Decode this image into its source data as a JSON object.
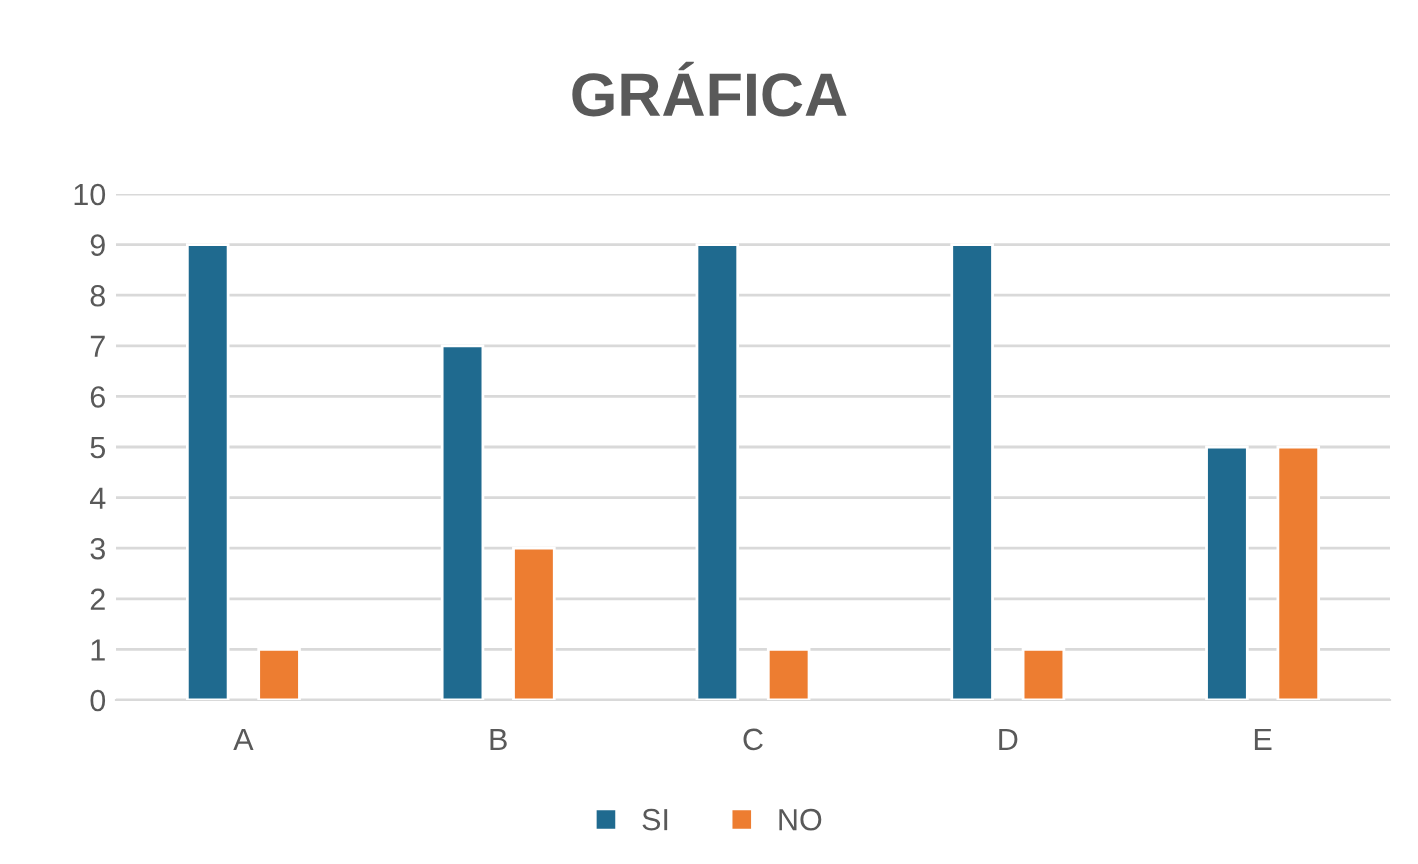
{
  "chart_data": {
    "type": "bar",
    "title": "GRÁFICA",
    "categories": [
      "A",
      "B",
      "C",
      "D",
      "E"
    ],
    "series": [
      {
        "name": "SI",
        "color": "#1f6a8f",
        "values": [
          9,
          7,
          9,
          9,
          5
        ]
      },
      {
        "name": "NO",
        "color": "#ed7d31",
        "values": [
          1,
          3,
          1,
          1,
          5
        ]
      }
    ],
    "ylim": [
      0,
      10
    ],
    "yticks": [
      0,
      1,
      2,
      3,
      4,
      5,
      6,
      7,
      8,
      9,
      10
    ],
    "grid": "y",
    "legend": "bottom"
  }
}
